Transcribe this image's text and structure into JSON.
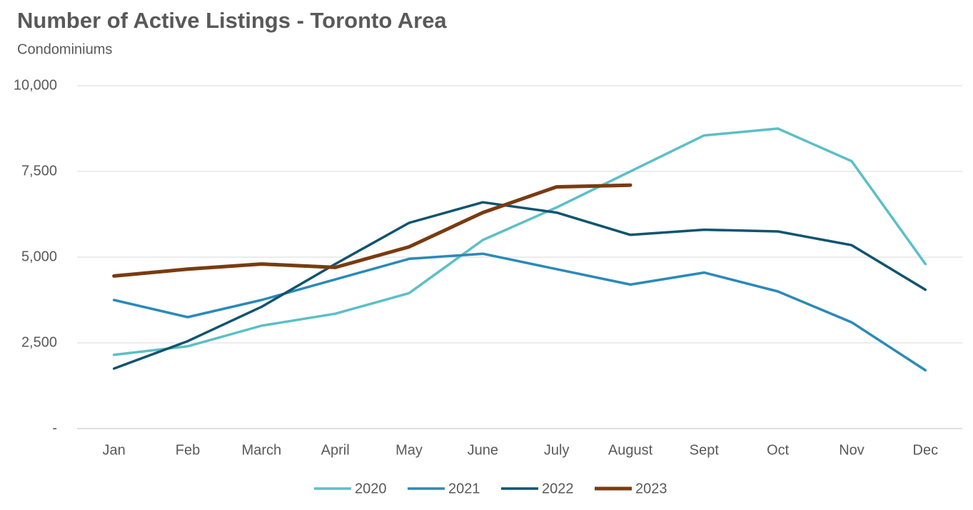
{
  "chart_data": {
    "type": "line",
    "title": "Number of Active Listings - Toronto Area",
    "subtitle": "Condominiums",
    "categories": [
      "Jan",
      "Feb",
      "March",
      "April",
      "May",
      "June",
      "July",
      "August",
      "Sept",
      "Oct",
      "Nov",
      "Dec"
    ],
    "series": [
      {
        "name": "2020",
        "color": "#5bbfc7",
        "values": [
          2150,
          2400,
          3000,
          3350,
          3950,
          5500,
          6450,
          7500,
          8550,
          8750,
          7800,
          4800
        ]
      },
      {
        "name": "2021",
        "color": "#2a8ab8",
        "values": [
          3750,
          3250,
          3750,
          4350,
          4950,
          5100,
          4650,
          4200,
          4550,
          4000,
          3100,
          1700
        ]
      },
      {
        "name": "2022",
        "color": "#0f5470",
        "values": [
          1750,
          2550,
          3550,
          4800,
          6000,
          6600,
          6300,
          5650,
          5800,
          5750,
          5350,
          4050
        ]
      },
      {
        "name": "2023",
        "color": "#7a3b10",
        "values": [
          4450,
          4650,
          4800,
          4700,
          5300,
          6300,
          7050,
          7100,
          null,
          null,
          null,
          null
        ]
      }
    ],
    "ylim": [
      0,
      10000
    ],
    "yticks": [
      {
        "value": 0,
        "label": "-"
      },
      {
        "value": 2500,
        "label": "2,500"
      },
      {
        "value": 5000,
        "label": "5,000"
      },
      {
        "value": 7500,
        "label": "7,500"
      },
      {
        "value": 10000,
        "label": "10,000"
      }
    ],
    "grid": true,
    "legend": "bottom"
  }
}
